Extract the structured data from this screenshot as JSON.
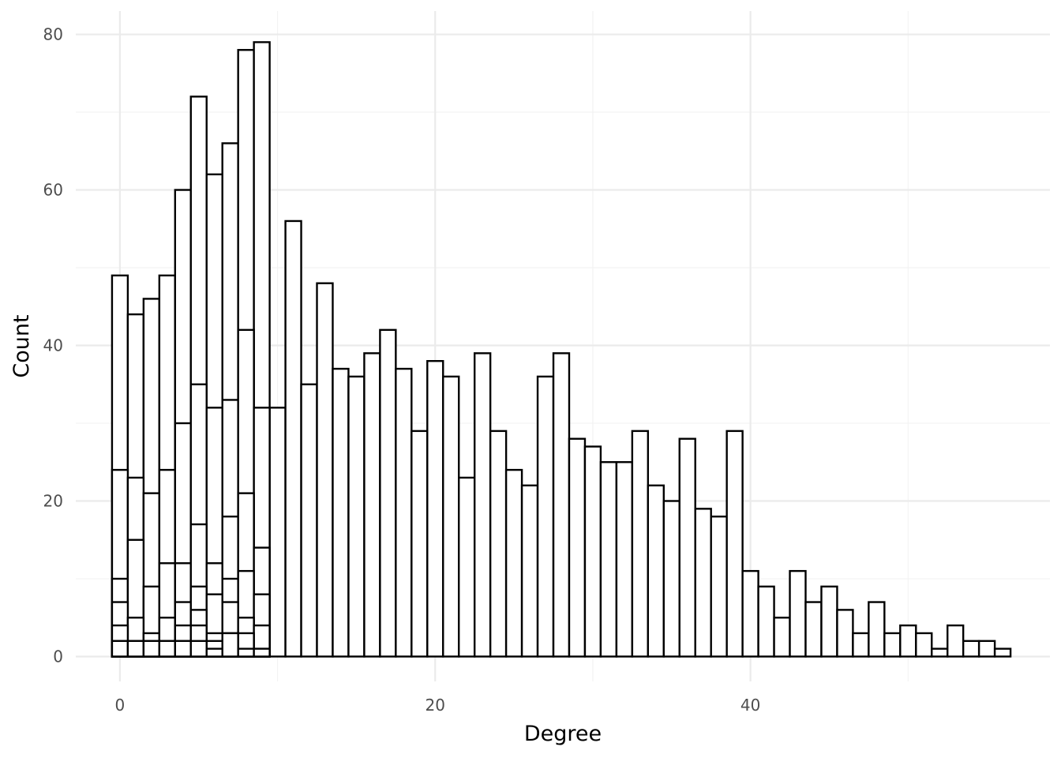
{
  "chart_data": {
    "type": "bar",
    "title": "",
    "xlabel": "Degree",
    "ylabel": "Count",
    "xlim": [
      -2.8,
      59
    ],
    "ylim": [
      -3.2,
      83
    ],
    "x_ticks_major": [
      0,
      20,
      40
    ],
    "x_ticks_minor": [
      10,
      30,
      50
    ],
    "y_ticks_major": [
      0,
      20,
      40,
      60,
      80
    ],
    "y_ticks_minor": [
      10,
      30,
      50,
      70
    ],
    "grid": true,
    "bar_style": "white fill, black outline, overlapping layers",
    "layers": [
      {
        "x": [
          0,
          1,
          2,
          3,
          4,
          5,
          6,
          7,
          8,
          9,
          10,
          11,
          12,
          13,
          14,
          15,
          16,
          17,
          18,
          19,
          20,
          21,
          22,
          23,
          24,
          25,
          26,
          27,
          28,
          29,
          30,
          31,
          32,
          33,
          34,
          35,
          36,
          37,
          38,
          39,
          40,
          41,
          42,
          43,
          44,
          45,
          46,
          47,
          48,
          49,
          50,
          51,
          52,
          53,
          54,
          55,
          56
        ],
        "values": [
          49,
          44,
          46,
          49,
          60,
          72,
          62,
          66,
          78,
          79,
          32,
          56,
          35,
          48,
          37,
          36,
          39,
          42,
          37,
          29,
          38,
          36,
          23,
          39,
          29,
          24,
          22,
          36,
          39,
          28,
          27,
          25,
          25,
          29,
          22,
          20,
          28,
          19,
          18,
          29,
          11,
          9,
          5,
          11,
          7,
          9,
          6,
          3,
          7,
          3,
          4,
          3,
          1,
          4,
          2,
          2,
          1
        ]
      },
      {
        "x": [
          0,
          1,
          2,
          3,
          4,
          5,
          6,
          7,
          8,
          9
        ],
        "values": [
          24,
          23,
          21,
          24,
          30,
          35,
          32,
          33,
          42,
          32
        ]
      },
      {
        "x": [
          0,
          1,
          2,
          3,
          4,
          5,
          6,
          7,
          8,
          9
        ],
        "values": [
          10,
          15,
          9,
          12,
          12,
          17,
          12,
          18,
          21,
          14
        ]
      },
      {
        "x": [
          0,
          1,
          2,
          3,
          4,
          5,
          6,
          7,
          8,
          9
        ],
        "values": [
          7,
          5,
          3,
          5,
          7,
          9,
          8,
          10,
          11,
          8
        ]
      },
      {
        "x": [
          0,
          1,
          2,
          3,
          4,
          5,
          6,
          7,
          8,
          9
        ],
        "values": [
          4,
          2,
          2,
          2,
          4,
          6,
          3,
          7,
          5,
          4
        ]
      },
      {
        "x": [
          0,
          1,
          2,
          3,
          4,
          5,
          6,
          7,
          8,
          9
        ],
        "values": [
          2,
          2,
          2,
          2,
          2,
          4,
          2,
          3,
          3,
          1
        ]
      },
      {
        "x": [
          0,
          1,
          2,
          3,
          4,
          5,
          6,
          7,
          8,
          9
        ],
        "values": [
          2,
          2,
          2,
          2,
          2,
          2,
          1,
          3,
          1,
          1
        ]
      }
    ]
  }
}
